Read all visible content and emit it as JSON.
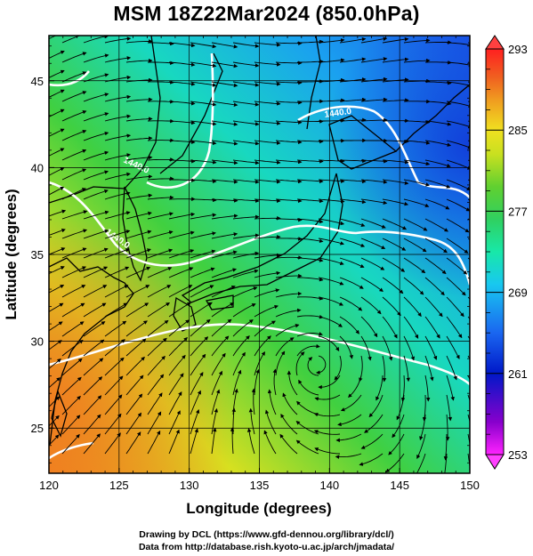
{
  "title": "MSM 18Z22Mar2024 (850.0hPa)",
  "map": {
    "x_label": "Longitude (degrees)",
    "y_label": "Latitude  (degrees)",
    "x_range": [
      120,
      150
    ],
    "y_range": [
      22.4,
      47.6
    ],
    "x_ticks": [
      120,
      125,
      130,
      135,
      140,
      145,
      150
    ],
    "y_ticks": [
      25,
      30,
      35,
      40,
      45
    ],
    "grid": true,
    "contour_level_label": "1440.0"
  },
  "colorbar": {
    "range": [
      253,
      293
    ],
    "labels": [
      "293",
      "285",
      "277",
      "269",
      "261",
      "253"
    ],
    "label_values": [
      293,
      285,
      277,
      269,
      261,
      253
    ],
    "colors": [
      "#ff22ff",
      "#8800cc",
      "#0018c8",
      "#1a66f0",
      "#18c8f0",
      "#18e8a8",
      "#30d060",
      "#60d030",
      "#c8e020",
      "#f0e020",
      "#f0a020",
      "#f06020",
      "#ff2020"
    ]
  },
  "credits": {
    "line1": "Drawing by DCL (https://www.gfd-dennou.org/library/dcl/)",
    "line2": "Data from http://database.rish.kyoto-u.ac.jp/arch/jmadata/"
  }
}
